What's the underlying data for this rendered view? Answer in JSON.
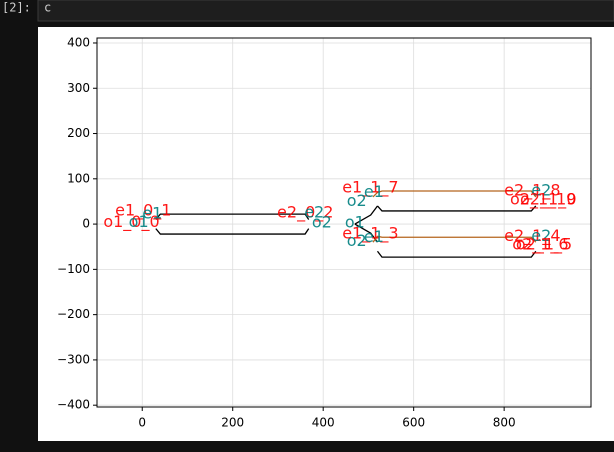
{
  "cell": {
    "prompt": "[2]:",
    "code": "c"
  },
  "chart_data": {
    "type": "line",
    "xlim": [
      -100,
      992
    ],
    "ylim": [
      -404,
      411
    ],
    "xticks": [
      0,
      200,
      400,
      600,
      800
    ],
    "yticks": [
      {
        "value": -400,
        "label": "−400"
      },
      {
        "value": -300,
        "label": "−300"
      },
      {
        "value": -200,
        "label": "−200"
      },
      {
        "value": -100,
        "label": "−100"
      },
      0,
      100,
      200,
      300,
      400
    ],
    "grid": true,
    "series": [
      {
        "color": "#000000",
        "x": [
          30,
          40,
          360,
          368
        ],
        "values": [
          10,
          22,
          22,
          10
        ]
      },
      {
        "color": "#000000",
        "x": [
          30,
          40,
          360,
          368
        ],
        "values": [
          -10,
          -22,
          -22,
          -10
        ]
      },
      {
        "color": "#000000",
        "x": [
          470,
          505,
          520
        ],
        "values": [
          0,
          20,
          40
        ]
      },
      {
        "color": "#000000",
        "x": [
          470,
          505,
          520
        ],
        "values": [
          0,
          -20,
          -40
        ]
      },
      {
        "color": "#b5651d",
        "x": [
          510,
          520,
          530,
          860,
          870
        ],
        "values": [
          60,
          70,
          73,
          73,
          60
        ]
      },
      {
        "color": "#000000",
        "x": [
          520,
          530,
          860,
          870
        ],
        "values": [
          40,
          29,
          29,
          40
        ]
      },
      {
        "color": "#b5651d",
        "x": [
          510,
          520,
          530,
          860,
          870
        ],
        "values": [
          -40,
          -27,
          -29,
          -29,
          -40
        ]
      },
      {
        "color": "#000000",
        "x": [
          520,
          530,
          860,
          870
        ],
        "values": [
          -60,
          -73,
          -73,
          -60
        ]
      }
    ],
    "annotations": [
      {
        "text": "e1_0_1",
        "x": -60,
        "y": 29,
        "color": "#ff0000"
      },
      {
        "text": "o1_0_0",
        "x": -86,
        "y": 4,
        "color": "#ff0000"
      },
      {
        "text": "e1",
        "x": 0,
        "y": 22,
        "color": "#008080"
      },
      {
        "text": "o1",
        "x": -30,
        "y": 4,
        "color": "#008080"
      },
      {
        "text": "e2_0_2",
        "x": 298,
        "y": 24,
        "color": "#ff0000"
      },
      {
        "text": "e2",
        "x": 358,
        "y": 24,
        "color": "#008080"
      },
      {
        "text": "o2",
        "x": 375,
        "y": 2,
        "color": "#008080"
      },
      {
        "text": "e1_1_7",
        "x": 442,
        "y": 80,
        "color": "#ff0000"
      },
      {
        "text": "e1",
        "x": 490,
        "y": 70,
        "color": "#008080"
      },
      {
        "text": "o2",
        "x": 452,
        "y": 50,
        "color": "#008080"
      },
      {
        "text": "o1",
        "x": 448,
        "y": 2,
        "color": "#008080"
      },
      {
        "text": "o2",
        "x": 452,
        "y": -38,
        "color": "#008080"
      },
      {
        "text": "e1_1_3",
        "x": 442,
        "y": -22,
        "color": "#ff0000"
      },
      {
        "text": "e1",
        "x": 490,
        "y": -30,
        "color": "#008080"
      },
      {
        "text": "e2_1_8",
        "x": 800,
        "y": 73,
        "color": "#ff0000"
      },
      {
        "text": "e2",
        "x": 860,
        "y": 73,
        "color": "#008080"
      },
      {
        "text": "o2_1_10",
        "x": 813,
        "y": 53,
        "color": "#ff0000"
      },
      {
        "text": "o2_1_9",
        "x": 835,
        "y": 53,
        "color": "#ff0000"
      },
      {
        "text": "e2_1_4",
        "x": 800,
        "y": -27,
        "color": "#ff0000"
      },
      {
        "text": "e2",
        "x": 860,
        "y": -27,
        "color": "#008080"
      },
      {
        "text": "o2_1_5",
        "x": 826,
        "y": -46,
        "color": "#ff0000"
      },
      {
        "text": "o2_1_6",
        "x": 818,
        "y": -46,
        "color": "#ff0000"
      }
    ]
  }
}
